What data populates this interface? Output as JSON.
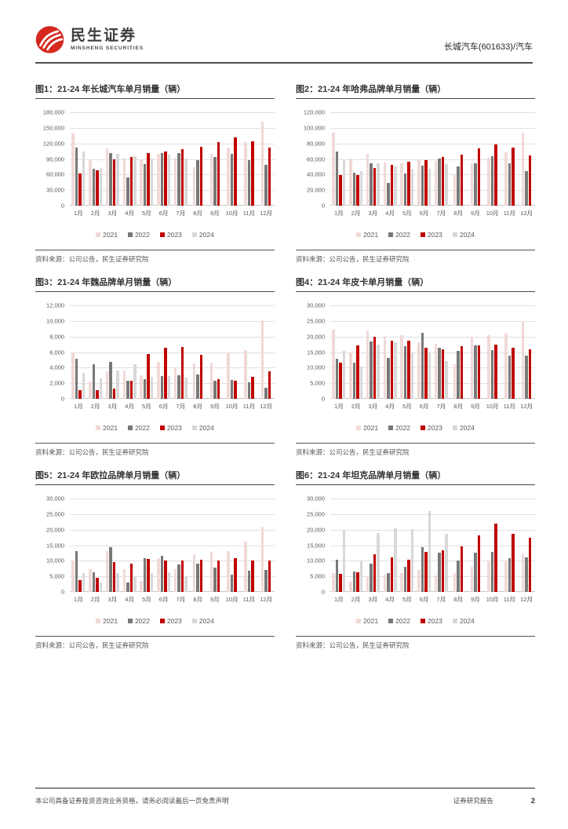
{
  "header": {
    "logo_cn": "民生证券",
    "logo_en": "MINSHENG SECURITIES",
    "stock_label": "长城汽车(601633)/汽车",
    "logo_color": "#d5281e"
  },
  "footer": {
    "disclaimer": "本公司具备证券投资咨询业务资格，请务必阅读最后一页免责声明",
    "report_type": "证券研究报告",
    "page_number": "2"
  },
  "chart_data": [
    {
      "type": "bar",
      "title": "图1：21-24 年长城汽车单月销量（辆）",
      "source": "资料来源：公司公告，民生证券研究院",
      "categories": [
        "1月",
        "2月",
        "3月",
        "4月",
        "5月",
        "6月",
        "7月",
        "8月",
        "9月",
        "10月",
        "11月",
        "12月"
      ],
      "ylim": [
        0,
        180000
      ],
      "ytick_step": 30000,
      "grid": true,
      "legend_position": "bottom",
      "series": [
        {
          "name": "2021",
          "color": "#f0d9d8",
          "values": [
            139000,
            90000,
            111000,
            92000,
            87000,
            100000,
            92000,
            74000,
            100000,
            112000,
            122000,
            162000
          ]
        },
        {
          "name": "2022",
          "color": "#787878",
          "values": [
            112000,
            71000,
            101000,
            54000,
            80000,
            101000,
            102000,
            88000,
            94000,
            100000,
            88000,
            78000
          ]
        },
        {
          "name": "2023",
          "color": "#c00000",
          "values": [
            62000,
            68000,
            90000,
            94000,
            101000,
            105000,
            109000,
            114000,
            122000,
            131000,
            124000,
            112000
          ]
        },
        {
          "name": "2024",
          "color": "#d8d8d8",
          "values": [
            104000,
            71000,
            100000,
            95000,
            91000,
            98000,
            91000,
            null,
            null,
            null,
            null,
            null
          ]
        }
      ]
    },
    {
      "type": "bar",
      "title": "图2：21-24 年哈弗品牌单月销量（辆）",
      "source": "资料来源：公司公告，民生证券研究院",
      "categories": [
        "1月",
        "2月",
        "3月",
        "4月",
        "5月",
        "6月",
        "7月",
        "8月",
        "9月",
        "10月",
        "11月",
        "12月"
      ],
      "ylim": [
        0,
        120000
      ],
      "ytick_step": 20000,
      "grid": true,
      "legend_position": "bottom",
      "series": [
        {
          "name": "2021",
          "color": "#f0d9d8",
          "values": [
            94000,
            61000,
            67000,
            55000,
            54000,
            60000,
            57000,
            40000,
            54000,
            62000,
            69000,
            94000
          ]
        },
        {
          "name": "2022",
          "color": "#787878",
          "values": [
            70000,
            42000,
            54000,
            29000,
            41000,
            51000,
            61000,
            50000,
            54000,
            64000,
            54000,
            44000
          ]
        },
        {
          "name": "2023",
          "color": "#c00000",
          "values": [
            39000,
            39000,
            48000,
            52000,
            56000,
            59000,
            63000,
            66000,
            74000,
            79000,
            75000,
            65000
          ]
        },
        {
          "name": "2024",
          "color": "#d8d8d8",
          "values": [
            60000,
            44000,
            54000,
            50000,
            47000,
            47000,
            53000,
            null,
            null,
            null,
            null,
            null
          ]
        }
      ]
    },
    {
      "type": "bar",
      "title": "图3：21-24 年魏品牌单月销量（辆）",
      "source": "资料来源：公司公告，民生证券研究院",
      "categories": [
        "1月",
        "2月",
        "3月",
        "4月",
        "5月",
        "6月",
        "7月",
        "8月",
        "9月",
        "10月",
        "11月",
        "12月"
      ],
      "ylim": [
        0,
        12000
      ],
      "ytick_step": 2000,
      "grid": true,
      "legend_position": "bottom",
      "series": [
        {
          "name": "2021",
          "color": "#f0d9d8",
          "values": [
            6000,
            2200,
            3500,
            3600,
            3000,
            4700,
            4000,
            4500,
            4650,
            5800,
            6300,
            10100
          ]
        },
        {
          "name": "2022",
          "color": "#787878",
          "values": [
            5100,
            4400,
            4700,
            2300,
            2500,
            2900,
            3050,
            3100,
            2350,
            2400,
            2100,
            1400
          ]
        },
        {
          "name": "2023",
          "color": "#c00000",
          "values": [
            1100,
            1100,
            1300,
            2350,
            5750,
            6600,
            6650,
            5650,
            2550,
            2300,
            2850,
            3500
          ]
        },
        {
          "name": "2024",
          "color": "#d8d8d8",
          "values": [
            3300,
            2650,
            3600,
            4400,
            2800,
            2950,
            2750,
            null,
            null,
            null,
            null,
            null
          ]
        }
      ]
    },
    {
      "type": "bar",
      "title": "图4：21-24 年皮卡单月销量（辆）",
      "source": "资料来源：公司公告，民生证券研究院",
      "categories": [
        "1月",
        "2月",
        "3月",
        "4月",
        "5月",
        "6月",
        "7月",
        "8月",
        "9月",
        "10月",
        "11月",
        "12月"
      ],
      "ylim": [
        0,
        30000
      ],
      "ytick_step": 5000,
      "grid": true,
      "legend_position": "bottom",
      "series": [
        {
          "name": "2021",
          "color": "#f0d9d8",
          "values": [
            22200,
            15000,
            22000,
            20100,
            20400,
            18100,
            17600,
            11100,
            20000,
            20400,
            20900,
            24900
          ]
        },
        {
          "name": "2022",
          "color": "#787878",
          "values": [
            12900,
            11600,
            18400,
            13200,
            17000,
            21200,
            16300,
            15400,
            17100,
            15600,
            13900,
            13900
          ]
        },
        {
          "name": "2023",
          "color": "#c00000",
          "values": [
            11700,
            17100,
            20000,
            18700,
            18600,
            16500,
            15900,
            17000,
            17100,
            17300,
            16300,
            16000
          ]
        },
        {
          "name": "2024",
          "color": "#d8d8d8",
          "values": [
            15300,
            10400,
            17500,
            18100,
            15000,
            15000,
            12000,
            null,
            null,
            null,
            null,
            null
          ]
        }
      ]
    },
    {
      "type": "bar",
      "title": "图5：21-24 年欧拉品牌单月销量（辆）",
      "source": "资料来源：公司公告，民生证券研究院",
      "categories": [
        "1月",
        "2月",
        "3月",
        "4月",
        "5月",
        "6月",
        "7月",
        "8月",
        "9月",
        "10月",
        "11月",
        "12月"
      ],
      "ylim": [
        0,
        30000
      ],
      "ytick_step": 5000,
      "grid": true,
      "legend_position": "bottom",
      "series": [
        {
          "name": "2021",
          "color": "#f0d9d8",
          "values": [
            10200,
            7400,
            13100,
            7400,
            3500,
            10800,
            7200,
            12200,
            12800,
            13200,
            16200,
            20900
          ]
        },
        {
          "name": "2022",
          "color": "#787878",
          "values": [
            13200,
            6300,
            14300,
            3100,
            10800,
            11600,
            8800,
            9200,
            7700,
            5500,
            6800,
            7000
          ]
        },
        {
          "name": "2023",
          "color": "#c00000",
          "values": [
            3700,
            4500,
            9600,
            9000,
            10700,
            10100,
            10100,
            10300,
            10000,
            10800,
            10100,
            10000
          ]
        },
        {
          "name": "2024",
          "color": "#d8d8d8",
          "values": [
            6000,
            3000,
            6100,
            4700,
            6000,
            6200,
            4900,
            null,
            null,
            null,
            null,
            null
          ]
        }
      ]
    },
    {
      "type": "bar",
      "title": "图6：21-24 年坦克品牌单月销量（辆）",
      "source": "资料来源：公司公告，民生证券研究院",
      "categories": [
        "1月",
        "2月",
        "3月",
        "4月",
        "5月",
        "6月",
        "7月",
        "8月",
        "9月",
        "10月",
        "11月",
        "12月"
      ],
      "ylim": [
        0,
        30000
      ],
      "ytick_step": 5000,
      "grid": true,
      "legend_position": "bottom",
      "series": [
        {
          "name": "2021",
          "color": "#f0d9d8",
          "values": [
            6000,
            3300,
            5000,
            5500,
            6100,
            7100,
            5300,
            6100,
            8000,
            10000,
            10200,
            12000
          ]
        },
        {
          "name": "2022",
          "color": "#787878",
          "values": [
            10300,
            6500,
            9000,
            6100,
            8000,
            14300,
            12500,
            10000,
            12600,
            12800,
            10900,
            11100
          ]
        },
        {
          "name": "2023",
          "color": "#c00000",
          "values": [
            5900,
            6400,
            12000,
            11000,
            10400,
            12800,
            13400,
            14700,
            18100,
            22000,
            18600,
            17300
          ]
        },
        {
          "name": "2024",
          "color": "#d8d8d8",
          "values": [
            20000,
            10000,
            19000,
            20400,
            20200,
            26000,
            18700,
            null,
            null,
            null,
            null,
            null
          ]
        }
      ]
    }
  ]
}
